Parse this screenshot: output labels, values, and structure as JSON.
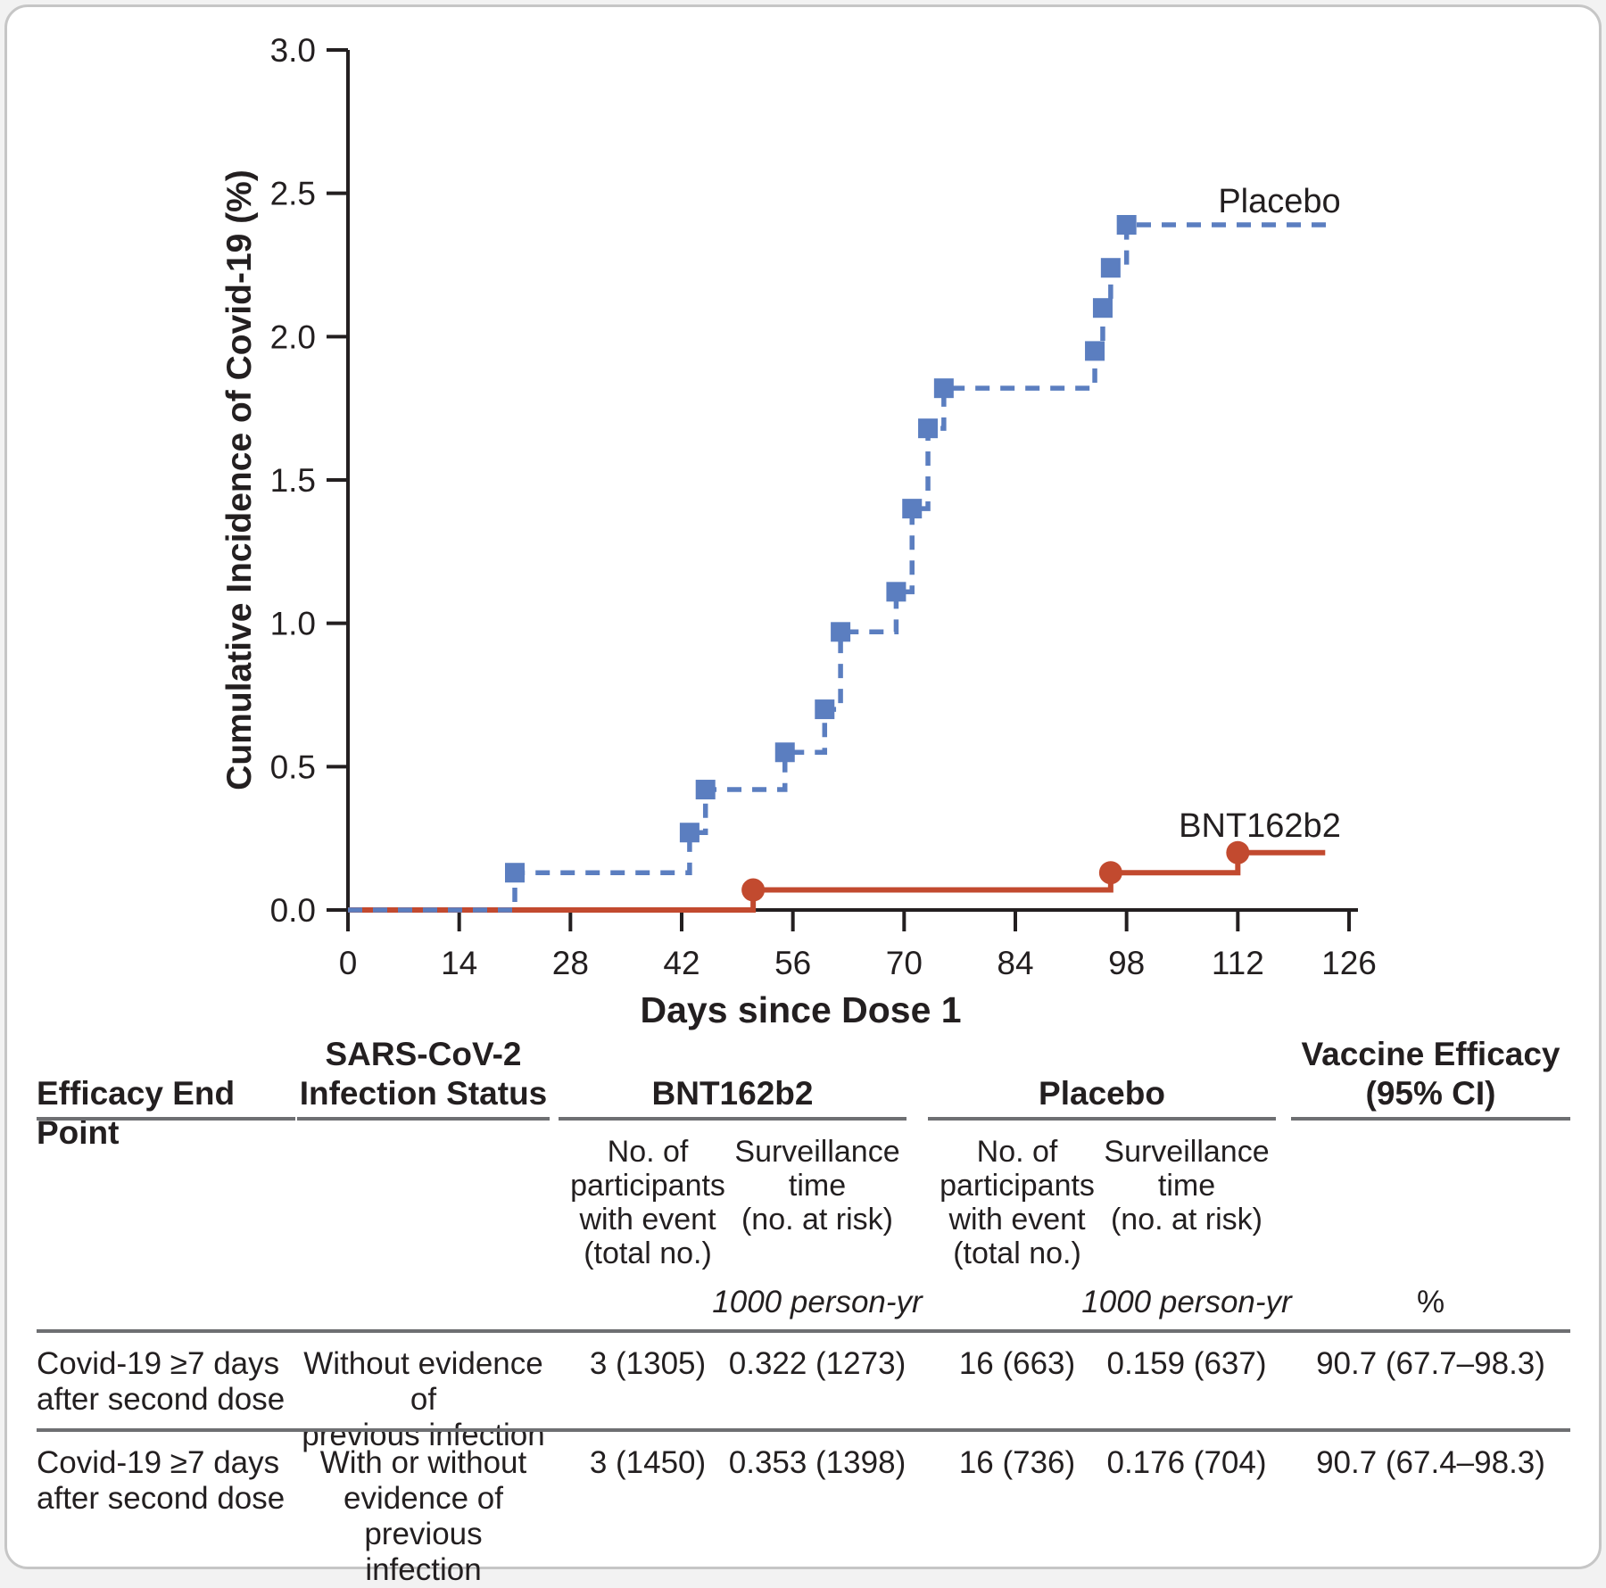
{
  "chart_data": {
    "type": "line",
    "subtype": "step-function-cumulative-incidence",
    "title": "",
    "xlabel": "Days since Dose 1",
    "ylabel": "Cumulative Incidence of Covid-19 (%)",
    "xlim": [
      0,
      126
    ],
    "ylim": [
      0.0,
      3.0
    ],
    "xticks": [
      0,
      14,
      28,
      42,
      56,
      70,
      84,
      98,
      112,
      126
    ],
    "yticks": [
      0.0,
      0.5,
      1.0,
      1.5,
      2.0,
      2.5,
      3.0
    ],
    "grid": false,
    "legend_position": "inline-labels",
    "series": [
      {
        "name": "Placebo",
        "color": "#5B7EC0",
        "line_style": "dashed",
        "marker": "square",
        "start": [
          0,
          0.0
        ],
        "steps_day_percent": [
          [
            21,
            0.13
          ],
          [
            43,
            0.27
          ],
          [
            45,
            0.42
          ],
          [
            55,
            0.55
          ],
          [
            60,
            0.7
          ],
          [
            62,
            0.97
          ],
          [
            69,
            1.11
          ],
          [
            71,
            1.4
          ],
          [
            73,
            1.68
          ],
          [
            75,
            1.82
          ],
          [
            94,
            1.95
          ],
          [
            95,
            2.1
          ],
          [
            96,
            2.24
          ],
          [
            98,
            2.39
          ]
        ],
        "end_day": 124
      },
      {
        "name": "BNT162b2",
        "color": "#C24A2F",
        "line_style": "solid",
        "marker": "circle",
        "start": [
          0,
          0.0
        ],
        "steps_day_percent": [
          [
            51,
            0.07
          ],
          [
            96,
            0.13
          ],
          [
            112,
            0.2
          ]
        ],
        "end_day": 123
      }
    ]
  },
  "table": {
    "endpoint_header": "Efficacy End Point",
    "status_header": "SARS-CoV-2\nInfection Status",
    "group_bnt": "BNT162b2",
    "group_placebo": "Placebo",
    "ve_header": "Vaccine Efficacy\n(95% CI)",
    "sub_participants": "No. of\nparticipants\nwith event\n(total no.)",
    "sub_surveillance": "Surveillance\ntime\n(no. at risk)",
    "unit_person_yr": "1000 person-yr",
    "unit_percent": "%",
    "rows": [
      {
        "endpoint": "Covid-19 ≥7 days\nafter second dose",
        "status": "Without evidence of\nprevious infection",
        "bnt_events": "3 (1305)",
        "bnt_surveillance": "0.322 (1273)",
        "placebo_events": "16 (663)",
        "placebo_surveillance": "0.159 (637)",
        "vaccine_efficacy": "90.7 (67.7–98.3)"
      },
      {
        "endpoint": "Covid-19 ≥7 days\nafter second dose",
        "status": "With or without\nevidence of previous\ninfection",
        "bnt_events": "3 (1450)",
        "bnt_surveillance": "0.353 (1398)",
        "placebo_events": "16 (736)",
        "placebo_surveillance": "0.176 (704)",
        "vaccine_efficacy": "90.7 (67.4–98.3)"
      }
    ]
  }
}
